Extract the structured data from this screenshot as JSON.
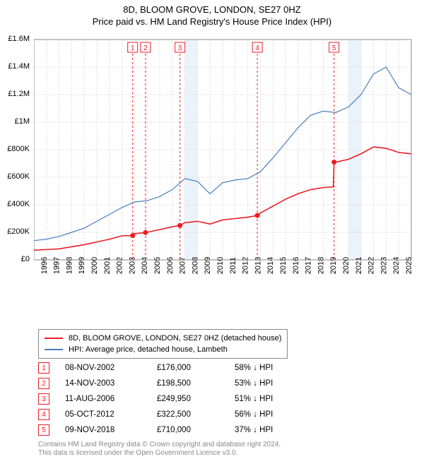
{
  "title_line1": "8D, BLOOM GROVE, LONDON, SE27 0HZ",
  "title_line2": "Price paid vs. HM Land Registry's House Price Index (HPI)",
  "chart": {
    "type": "line",
    "background_color": "#ffffff",
    "grid_color": "#dddddd",
    "grid_dash": "2,2",
    "shaded_band_color": "#eaf2fb",
    "shaded_bands_x": [
      [
        2007,
        2008
      ],
      [
        2020,
        2021
      ]
    ],
    "x_axis": {
      "min": 1995,
      "max": 2025,
      "tick_step": 1,
      "tick_rotation": -90,
      "label_fontsize": 11
    },
    "y_axis": {
      "min": 0,
      "max": 1600000,
      "tick_step": 200000,
      "tick_labels": [
        "£0",
        "£200K",
        "£400K",
        "£600K",
        "£800K",
        "£1M",
        "£1.2M",
        "£1.4M",
        "£1.6M"
      ],
      "label_fontsize": 11
    },
    "series": [
      {
        "name": "8D, BLOOM GROVE, LONDON, SE27 0HZ (detached house)",
        "color": "#ed1c24",
        "line_width": 1.6,
        "data": [
          [
            1995,
            70000
          ],
          [
            1996,
            75000
          ],
          [
            1997,
            80000
          ],
          [
            1998,
            95000
          ],
          [
            1999,
            110000
          ],
          [
            2000,
            130000
          ],
          [
            2001,
            150000
          ],
          [
            2002,
            175000
          ],
          [
            2002.85,
            176000
          ],
          [
            2003,
            190000
          ],
          [
            2003.87,
            198500
          ],
          [
            2004,
            200000
          ],
          [
            2005,
            220000
          ],
          [
            2006,
            240000
          ],
          [
            2006.61,
            249950
          ],
          [
            2007,
            270000
          ],
          [
            2008,
            280000
          ],
          [
            2009,
            260000
          ],
          [
            2010,
            290000
          ],
          [
            2011,
            300000
          ],
          [
            2012,
            310000
          ],
          [
            2012.76,
            322500
          ],
          [
            2013,
            340000
          ],
          [
            2014,
            390000
          ],
          [
            2015,
            440000
          ],
          [
            2016,
            480000
          ],
          [
            2017,
            510000
          ],
          [
            2018,
            525000
          ],
          [
            2018.8,
            530000
          ],
          [
            2018.86,
            710000
          ],
          [
            2019,
            710000
          ],
          [
            2020,
            730000
          ],
          [
            2021,
            770000
          ],
          [
            2022,
            820000
          ],
          [
            2023,
            810000
          ],
          [
            2024,
            780000
          ],
          [
            2025,
            770000
          ]
        ]
      },
      {
        "name": "HPI: Average price, detached house, Lambeth",
        "color": "#4a7ebb",
        "line_width": 1.2,
        "data": [
          [
            1995,
            140000
          ],
          [
            1996,
            150000
          ],
          [
            1997,
            170000
          ],
          [
            1998,
            200000
          ],
          [
            1999,
            230000
          ],
          [
            2000,
            280000
          ],
          [
            2001,
            330000
          ],
          [
            2002,
            380000
          ],
          [
            2003,
            420000
          ],
          [
            2004,
            430000
          ],
          [
            2005,
            460000
          ],
          [
            2006,
            510000
          ],
          [
            2007,
            590000
          ],
          [
            2008,
            570000
          ],
          [
            2009,
            480000
          ],
          [
            2010,
            560000
          ],
          [
            2011,
            580000
          ],
          [
            2012,
            590000
          ],
          [
            2013,
            640000
          ],
          [
            2014,
            740000
          ],
          [
            2015,
            850000
          ],
          [
            2016,
            960000
          ],
          [
            2017,
            1050000
          ],
          [
            2018,
            1080000
          ],
          [
            2019,
            1070000
          ],
          [
            2020,
            1110000
          ],
          [
            2021,
            1200000
          ],
          [
            2022,
            1350000
          ],
          [
            2023,
            1400000
          ],
          [
            2024,
            1250000
          ],
          [
            2025,
            1200000
          ]
        ]
      }
    ],
    "sale_markers": [
      {
        "n": "1",
        "x": 2002.85,
        "y": 176000
      },
      {
        "n": "2",
        "x": 2003.87,
        "y": 198500
      },
      {
        "n": "3",
        "x": 2006.61,
        "y": 249950
      },
      {
        "n": "4",
        "x": 2012.76,
        "y": 322500
      },
      {
        "n": "5",
        "x": 2018.86,
        "y": 710000
      }
    ],
    "sale_point_color": "#ed1c24",
    "sale_point_radius": 3.5,
    "marker_line_color": "#ed1c24",
    "marker_line_dash": "3,3"
  },
  "legend": {
    "rows": [
      {
        "color": "#ed1c24",
        "label": "8D, BLOOM GROVE, LONDON, SE27 0HZ (detached house)"
      },
      {
        "color": "#4a7ebb",
        "label": "HPI: Average price, detached house, Lambeth"
      }
    ]
  },
  "sales_table": {
    "rows": [
      {
        "n": "1",
        "date": "08-NOV-2002",
        "price": "£176,000",
        "delta": "58% ↓ HPI"
      },
      {
        "n": "2",
        "date": "14-NOV-2003",
        "price": "£198,500",
        "delta": "53% ↓ HPI"
      },
      {
        "n": "3",
        "date": "11-AUG-2006",
        "price": "£249,950",
        "delta": "51% ↓ HPI"
      },
      {
        "n": "4",
        "date": "05-OCT-2012",
        "price": "£322,500",
        "delta": "56% ↓ HPI"
      },
      {
        "n": "5",
        "date": "09-NOV-2018",
        "price": "£710,000",
        "delta": "37% ↓ HPI"
      }
    ]
  },
  "footer_line1": "Contains HM Land Registry data © Crown copyright and database right 2024.",
  "footer_line2": "This data is licensed under the Open Government Licence v3.0."
}
